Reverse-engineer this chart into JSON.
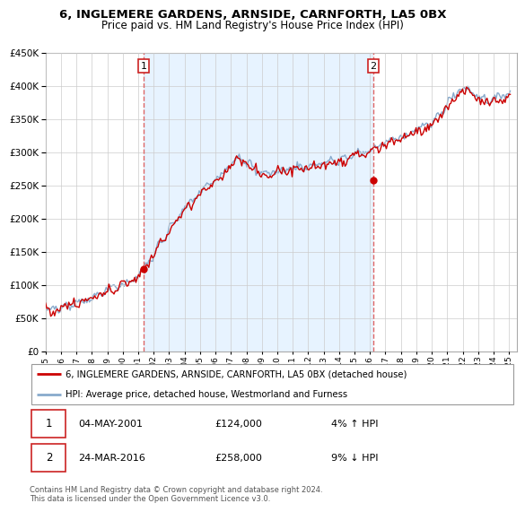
{
  "title": "6, INGLEMERE GARDENS, ARNSIDE, CARNFORTH, LA5 0BX",
  "subtitle": "Price paid vs. HM Land Registry's House Price Index (HPI)",
  "property_label": "6, INGLEMERE GARDENS, ARNSIDE, CARNFORTH, LA5 0BX (detached house)",
  "hpi_label": "HPI: Average price, detached house, Westmorland and Furness",
  "transaction1": {
    "label": "1",
    "date": "04-MAY-2001",
    "price": 124000,
    "hpi_relation": "4% ↑ HPI"
  },
  "transaction2": {
    "label": "2",
    "date": "24-MAR-2016",
    "price": 258000,
    "hpi_relation": "9% ↓ HPI"
  },
  "footer": "Contains HM Land Registry data © Crown copyright and database right 2024.\nThis data is licensed under the Open Government Licence v3.0.",
  "property_color": "#cc0000",
  "hpi_color": "#88aacc",
  "vline_color": "#dd6666",
  "shade_color": "#ddeeff",
  "ylim": [
    0,
    450000
  ],
  "yticks": [
    0,
    50000,
    100000,
    150000,
    200000,
    250000,
    300000,
    350000,
    400000,
    450000
  ],
  "t1_year": 2001.34,
  "t2_year": 2016.22,
  "xmin": 1995,
  "xmax": 2025.5
}
